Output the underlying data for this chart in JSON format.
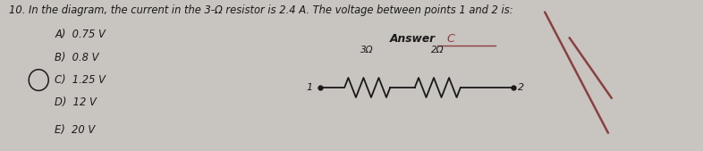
{
  "title_line1": "10. In the diagram, the current in the 3-Ω resistor is 2.4 A. The voltage between points 1 and 2 is:",
  "answer_label": "Answer",
  "answer_value": "C",
  "choices": [
    "A)  0.75 V",
    "B)  0.8 V",
    "C)  1.25 V",
    "D)  12 V",
    "E)  20 V"
  ],
  "circle_choice_index": 2,
  "bg_color": "#c8c4c0",
  "text_color": "#1a1a1a",
  "resistor1_label": "3Ω",
  "resistor2_label": "2Ω",
  "node1_label": "1",
  "node2_label": "2",
  "cross_color": "#8B4040",
  "answer_color": "#8B4040",
  "underline_color": "#8B4040"
}
